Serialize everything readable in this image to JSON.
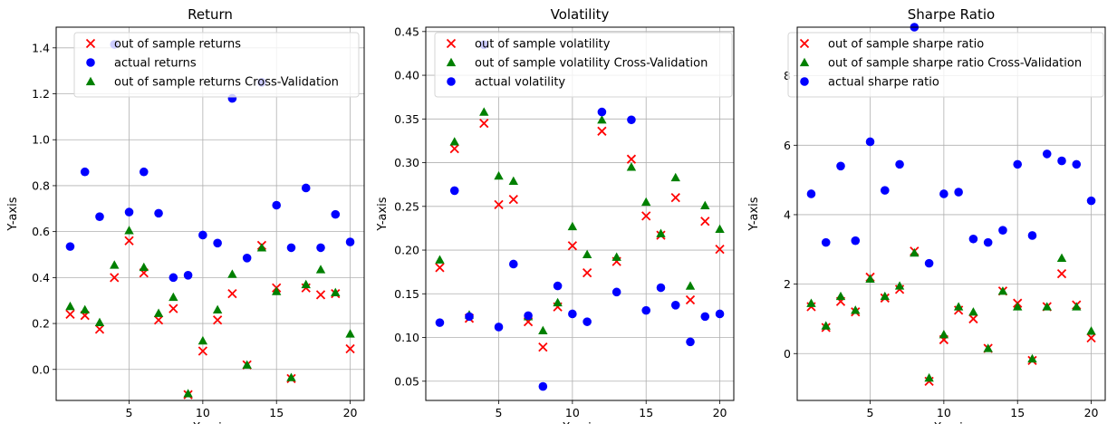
{
  "chart_data": [
    {
      "type": "scatter",
      "title": "Return",
      "xlabel": "X-axis",
      "ylabel": "Y-axis",
      "xlim": [
        0.05,
        20.95
      ],
      "ylim": [
        -0.135,
        1.49
      ],
      "xticks": [
        5,
        10,
        15,
        20
      ],
      "yticks": [
        0.0,
        0.2,
        0.4,
        0.6,
        0.8,
        1.0,
        1.2,
        1.4
      ],
      "ytick_labels": [
        "0.0",
        "0.2",
        "0.4",
        "0.6",
        "0.8",
        "1.0",
        "1.2",
        "1.4"
      ],
      "grid": true,
      "legend_position": "top-right",
      "x": [
        1,
        2,
        3,
        4,
        5,
        6,
        7,
        8,
        9,
        10,
        11,
        12,
        13,
        14,
        15,
        16,
        17,
        18,
        19,
        20
      ],
      "series": [
        {
          "name": "out of sample returns",
          "marker": "x",
          "color": "#ff0000",
          "values": [
            0.24,
            0.235,
            0.175,
            0.4,
            0.56,
            0.42,
            0.215,
            0.265,
            -0.11,
            0.08,
            0.215,
            0.33,
            0.02,
            0.54,
            0.355,
            -0.04,
            0.355,
            0.325,
            0.33,
            0.09
          ]
        },
        {
          "name": "actual returns",
          "marker": "circle",
          "color": "#0000ff",
          "values": [
            0.535,
            0.86,
            0.665,
            1.415,
            0.685,
            0.86,
            0.68,
            0.4,
            0.41,
            0.585,
            0.55,
            1.18,
            0.485,
            1.25,
            0.715,
            0.53,
            0.79,
            0.53,
            0.675,
            0.555
          ]
        },
        {
          "name": "out of sample returns Cross-Validation",
          "marker": "triangle",
          "color": "#008000",
          "values": [
            0.275,
            0.26,
            0.205,
            0.455,
            0.605,
            0.445,
            0.245,
            0.315,
            -0.105,
            0.125,
            0.26,
            0.415,
            0.02,
            0.53,
            0.34,
            -0.035,
            0.37,
            0.435,
            0.335,
            0.155
          ]
        }
      ]
    },
    {
      "type": "scatter",
      "title": "Volatility",
      "xlabel": "X-axis",
      "ylabel": "Y-axis",
      "xlim": [
        0.05,
        20.95
      ],
      "ylim": [
        0.028,
        0.455
      ],
      "xticks": [
        5,
        10,
        15,
        20
      ],
      "yticks": [
        0.05,
        0.1,
        0.15,
        0.2,
        0.25,
        0.3,
        0.35,
        0.4,
        0.45
      ],
      "ytick_labels": [
        "0.05",
        "0.10",
        "0.15",
        "0.20",
        "0.25",
        "0.30",
        "0.35",
        "0.40",
        "0.45"
      ],
      "grid": true,
      "legend_position": "top-right",
      "x": [
        1,
        2,
        3,
        4,
        5,
        6,
        7,
        8,
        9,
        10,
        11,
        12,
        13,
        14,
        15,
        16,
        17,
        18,
        19,
        20
      ],
      "series": [
        {
          "name": "out of sample volatility",
          "marker": "x",
          "color": "#ff0000",
          "values": [
            0.18,
            0.316,
            0.122,
            0.345,
            0.252,
            0.258,
            0.118,
            0.089,
            0.135,
            0.205,
            0.174,
            0.336,
            0.187,
            0.304,
            0.239,
            0.217,
            0.26,
            0.143,
            0.233,
            0.201
          ]
        },
        {
          "name": "out of sample volatility Cross-Validation",
          "marker": "triangle",
          "color": "#008000",
          "values": [
            0.189,
            0.324,
            0.126,
            0.358,
            0.285,
            0.279,
            0.124,
            0.108,
            0.14,
            0.227,
            0.195,
            0.349,
            0.192,
            0.295,
            0.255,
            0.219,
            0.283,
            0.159,
            0.251,
            0.224
          ]
        },
        {
          "name": "actual volatility",
          "marker": "circle",
          "color": "#0000ff",
          "values": [
            0.117,
            0.268,
            0.124,
            0.435,
            0.112,
            0.184,
            0.125,
            0.044,
            0.159,
            0.127,
            0.118,
            0.358,
            0.152,
            0.349,
            0.131,
            0.157,
            0.137,
            0.095,
            0.124,
            0.127
          ]
        }
      ]
    },
    {
      "type": "scatter",
      "title": "Sharpe Ratio",
      "xlabel": "X-axis",
      "ylabel": "Y-axis",
      "xlim": [
        0.05,
        20.95
      ],
      "ylim": [
        -1.35,
        9.4
      ],
      "xticks": [
        5,
        10,
        15,
        20
      ],
      "yticks": [
        0,
        2,
        4,
        6,
        8
      ],
      "ytick_labels": [
        "0",
        "2",
        "4",
        "6",
        "8"
      ],
      "grid": true,
      "legend_position": "top-right",
      "x": [
        1,
        2,
        3,
        4,
        5,
        6,
        7,
        8,
        9,
        10,
        11,
        12,
        13,
        14,
        15,
        16,
        17,
        18,
        19,
        20
      ],
      "series": [
        {
          "name": "out of sample sharpe ratio",
          "marker": "x",
          "color": "#ff0000",
          "values": [
            1.35,
            0.75,
            1.5,
            1.2,
            2.2,
            1.6,
            1.85,
            2.95,
            -0.8,
            0.4,
            1.25,
            1.0,
            0.15,
            1.8,
            1.45,
            -0.2,
            1.35,
            2.3,
            1.4,
            0.45
          ]
        },
        {
          "name": "out of sample sharpe ratio Cross-Validation",
          "marker": "triangle",
          "color": "#008000",
          "values": [
            1.45,
            0.8,
            1.65,
            1.25,
            2.15,
            1.65,
            1.95,
            2.9,
            -0.7,
            0.55,
            1.35,
            1.2,
            0.15,
            1.8,
            1.35,
            -0.15,
            1.35,
            2.75,
            1.35,
            0.65
          ]
        },
        {
          "name": "actual sharpe ratio",
          "marker": "circle",
          "color": "#0000ff",
          "values": [
            4.6,
            3.2,
            5.4,
            3.25,
            6.1,
            4.7,
            5.45,
            9.4,
            2.6,
            4.6,
            4.65,
            3.3,
            3.2,
            3.55,
            5.45,
            3.4,
            5.75,
            5.55,
            5.45,
            4.4
          ]
        }
      ]
    }
  ]
}
